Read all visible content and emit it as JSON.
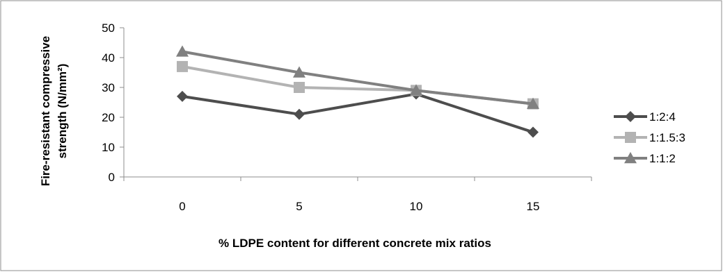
{
  "chart_data": {
    "type": "line",
    "title": "",
    "xlabel": "% LDPE content for different concrete mix ratios",
    "ylabel_lines": [
      "Fire-resistant compressive",
      "strength (N/mm²)"
    ],
    "categories": [
      "0",
      "5",
      "10",
      "15"
    ],
    "ylim": [
      0,
      50
    ],
    "yticks": [
      "0",
      "10",
      "20",
      "30",
      "40",
      "50"
    ],
    "grid": false,
    "legend_position": "right",
    "series": [
      {
        "name": "1:2:4",
        "values": [
          27,
          21,
          27.8,
          15
        ],
        "color": "#4d4d4d",
        "marker": "diamond"
      },
      {
        "name": "1:1.5:3",
        "values": [
          37,
          30,
          29,
          24.5
        ],
        "color": "#b3b3b3",
        "marker": "square"
      },
      {
        "name": "1:1:2",
        "values": [
          42,
          35,
          29,
          24.5
        ],
        "color": "#808080",
        "marker": "triangle"
      }
    ]
  }
}
